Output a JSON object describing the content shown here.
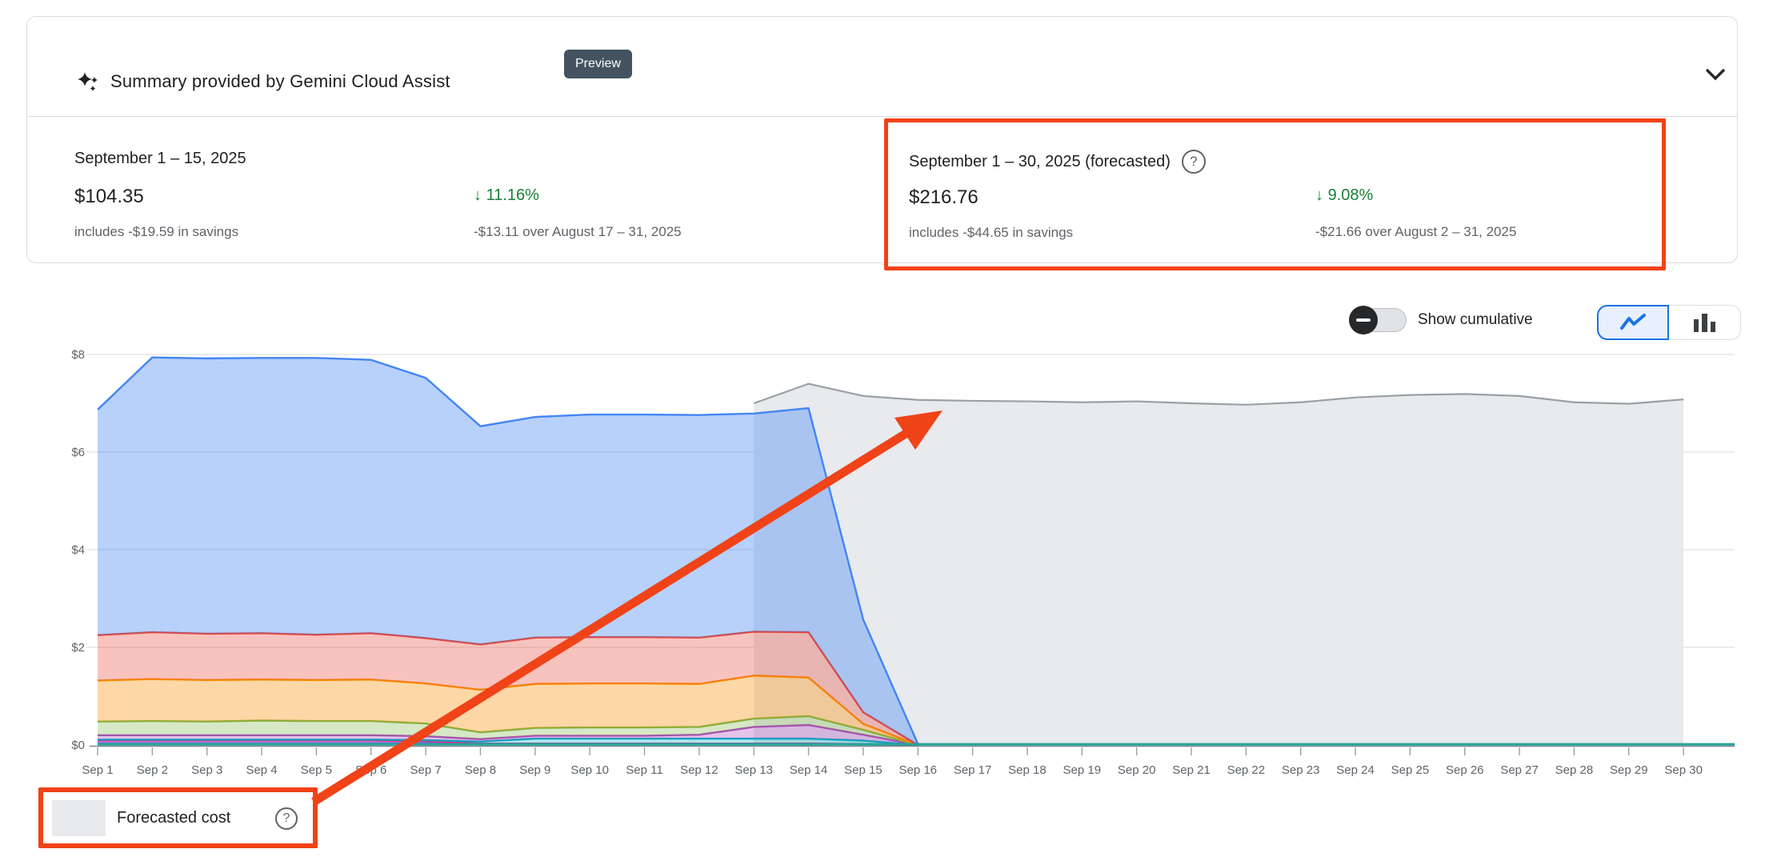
{
  "panel": {
    "title": "Summary provided by Gemini Cloud Assist",
    "badge": "Preview"
  },
  "ui": {
    "help_glyph": "?"
  },
  "summary": {
    "current": {
      "period": "September 1 – 15, 2025",
      "amount": "$104.35",
      "savings_note": "includes -$19.59 in savings",
      "delta_arrow": "↓",
      "delta": "11.16%",
      "delta_note": "-$13.11 over August 17 – 31, 2025"
    },
    "forecast": {
      "period": "September 1 – 30, 2025 (forecasted)",
      "amount": "$216.76",
      "savings_note": "includes -$44.65 in savings",
      "delta_arrow": "↓",
      "delta": "9.08%",
      "delta_note": "-$21.66 over August 2 – 31, 2025"
    }
  },
  "controls": {
    "cumulative_toggle_label": "Show cumulative",
    "cumulative_toggle_on": false,
    "chart_type_selected": "line"
  },
  "legend": {
    "forecast_label": "Forecasted cost"
  },
  "colors": {
    "annotation_red": "#f04318",
    "delta_green": "#188038",
    "badge_bg": "#44535f",
    "accent_blue": "#1a73e8",
    "axis_text": "#5f6368",
    "gridline": "#e3e5e8"
  },
  "chart_data": {
    "type": "area",
    "stacked": true,
    "title": "",
    "xlabel": "",
    "ylabel": "",
    "ylim": [
      0,
      8
    ],
    "grid": "horizontal",
    "x_labels": [
      "Sep 1",
      "Sep 2",
      "Sep 3",
      "Sep 4",
      "Sep 5",
      "Sep 6",
      "Sep 7",
      "Sep 8",
      "Sep 9",
      "Sep 10",
      "Sep 11",
      "Sep 12",
      "Sep 13",
      "Sep 14",
      "Sep 15",
      "Sep 16",
      "Sep 17",
      "Sep 18",
      "Sep 19",
      "Sep 20",
      "Sep 21",
      "Sep 22",
      "Sep 23",
      "Sep 24",
      "Sep 25",
      "Sep 26",
      "Sep 27",
      "Sep 28",
      "Sep 29",
      "Sep 30"
    ],
    "y_ticks": {
      "labels": [
        "$0",
        "$2",
        "$4",
        "$6",
        "$8"
      ],
      "values": [
        0,
        2,
        4,
        6,
        8
      ]
    },
    "actual_period_days": 16,
    "series": [
      {
        "name": "series-blue-thin",
        "line": "#4285f4",
        "fill": "rgba(66,133,244,0.45)",
        "values": [
          0.04,
          0.04,
          0.04,
          0.04,
          0.04,
          0.04,
          0.04,
          0.01,
          0.01,
          0.01,
          0.01,
          0.01,
          0.01,
          0.01,
          0.01,
          0
        ]
      },
      {
        "name": "series-magenta",
        "line": "#e52592",
        "fill": "rgba(230,37,146,0.30)",
        "values": [
          0.05,
          0.05,
          0.05,
          0.05,
          0.05,
          0.05,
          0.04,
          0.02,
          0.02,
          0.02,
          0.02,
          0.02,
          0.02,
          0.02,
          0.01,
          0
        ]
      },
      {
        "name": "series-cyan",
        "line": "#00acc1",
        "fill": "rgba(0,172,193,0.30)",
        "values": [
          0.02,
          0.02,
          0.02,
          0.02,
          0.02,
          0.02,
          0.02,
          0.04,
          0.1,
          0.1,
          0.1,
          0.1,
          0.1,
          0.1,
          0.07,
          0
        ]
      },
      {
        "name": "series-purple",
        "line": "#ab47bc",
        "fill": "rgba(171,71,188,0.32)",
        "values": [
          0.09,
          0.09,
          0.09,
          0.09,
          0.09,
          0.09,
          0.08,
          0.05,
          0.06,
          0.06,
          0.06,
          0.08,
          0.24,
          0.28,
          0.12,
          0
        ]
      },
      {
        "name": "series-green",
        "line": "#7cb342",
        "fill": "rgba(124,179,66,0.30)",
        "values": [
          0.28,
          0.29,
          0.28,
          0.3,
          0.29,
          0.29,
          0.26,
          0.14,
          0.16,
          0.17,
          0.17,
          0.16,
          0.17,
          0.18,
          0.1,
          0
        ]
      },
      {
        "name": "series-orange",
        "line": "#fb8c00",
        "fill": "rgba(251,140,0,0.35)",
        "values": [
          0.84,
          0.86,
          0.85,
          0.84,
          0.84,
          0.85,
          0.82,
          0.87,
          0.9,
          0.9,
          0.9,
          0.88,
          0.88,
          0.79,
          0.12,
          0
        ]
      },
      {
        "name": "series-red",
        "line": "#ea4335",
        "fill": "rgba(234,67,53,0.32)",
        "values": [
          0.93,
          0.96,
          0.95,
          0.95,
          0.93,
          0.95,
          0.93,
          0.93,
          0.95,
          0.95,
          0.95,
          0.95,
          0.9,
          0.93,
          0.24,
          0
        ]
      },
      {
        "name": "series-blue-main",
        "line": "#4285f4",
        "fill": "rgba(66,133,244,0.38)",
        "values": [
          4.62,
          5.63,
          5.64,
          5.64,
          5.67,
          5.6,
          5.33,
          4.47,
          4.52,
          4.56,
          4.56,
          4.56,
          4.47,
          4.59,
          1.9,
          0.02
        ]
      }
    ],
    "baseline_series": {
      "name": "series-teal",
      "color": "#26a39a",
      "value": 0.03,
      "extends_full_range": true
    },
    "forecast": {
      "name": "Forecasted cost",
      "color_line": "#9aa0a6",
      "color_fill": "#e8eaed",
      "start_index": 12,
      "values": [
        7.0,
        7.4,
        7.15,
        7.07,
        7.05,
        7.04,
        7.02,
        7.04,
        7.0,
        6.97,
        7.02,
        7.12,
        7.17,
        7.19,
        7.15,
        7.02,
        6.99,
        7.08
      ]
    }
  }
}
